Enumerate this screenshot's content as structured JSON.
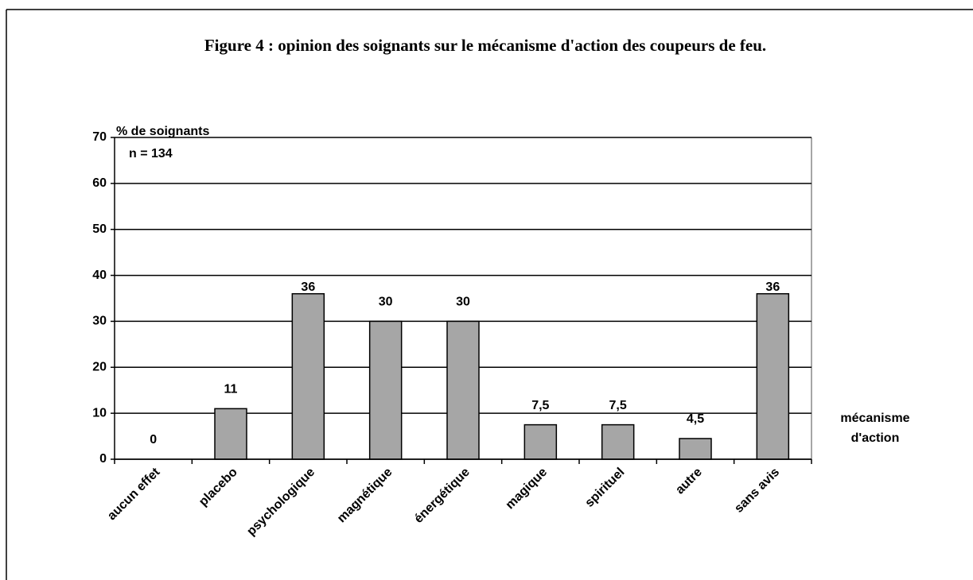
{
  "chart_data": {
    "type": "bar",
    "title": "Figure 4 : opinion des soignants sur le mécanisme d'action des coupeurs de feu.",
    "y_axis_label": "% de soignants",
    "x_axis_label": "mécanisme d'action",
    "annotation": "n = 134",
    "categories": [
      "aucun effet",
      "placebo",
      "psychologique",
      "magnétique",
      "énergétique",
      "magique",
      "spirituel",
      "autre",
      "sans avis"
    ],
    "values": [
      0,
      11,
      36,
      30,
      30,
      7.5,
      7.5,
      4.5,
      36
    ],
    "value_labels": [
      "0",
      "11",
      "36",
      "30",
      "30",
      "7,5",
      "7,5",
      "4,5",
      "36"
    ],
    "color": "#a6a6a6",
    "ylim": [
      0,
      70
    ],
    "yticks": [
      0,
      10,
      20,
      30,
      40,
      50,
      60,
      70
    ],
    "grid": true
  }
}
